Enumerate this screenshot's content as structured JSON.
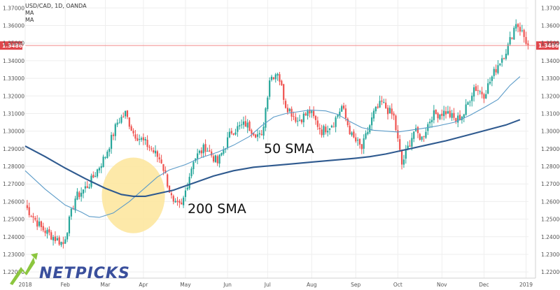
{
  "header": {
    "symbol": "USD/CAD, 1D, OANDA",
    "indicator_1": "MA",
    "indicator_2": "MA"
  },
  "logo": {
    "text": "NETPICKS"
  },
  "colors": {
    "up": "#26a69a",
    "down": "#ef5350",
    "sma50": "#5b9bc8",
    "sma200": "#2f5a8f",
    "highlight": "#fde59a",
    "price_line": "#f28b8b",
    "price_tag": "#e0474c",
    "logo": "#3a4f9c"
  },
  "chart_data": {
    "type": "candlestick",
    "title": "USD/CAD, 1D, OANDA",
    "current_price": "1.34863",
    "ylim": [
      1.2165,
      1.3745
    ],
    "y_ticks": [
      "1.37000",
      "1.36000",
      "1.35000",
      "1.34000",
      "1.33000",
      "1.32000",
      "1.31000",
      "1.30000",
      "1.29000",
      "1.28000",
      "1.27000",
      "1.26000",
      "1.25000",
      "1.24000",
      "1.23000",
      "1.22000"
    ],
    "x_ticks": [
      "2018",
      "Feb",
      "Mar",
      "Apr",
      "May",
      "Jun",
      "Jul",
      "Aug",
      "Sep",
      "Oct",
      "Nov",
      "Dec",
      "2019"
    ],
    "x_tick_index": [
      0,
      20,
      40,
      59,
      80,
      101,
      121,
      143,
      165,
      186,
      208,
      229,
      250
    ],
    "close_path": [
      [
        0,
        1.2575
      ],
      [
        8,
        1.245
      ],
      [
        15,
        1.239
      ],
      [
        19,
        1.236
      ],
      [
        25,
        1.262
      ],
      [
        32,
        1.27
      ],
      [
        40,
        1.286
      ],
      [
        46,
        1.305
      ],
      [
        50,
        1.31
      ],
      [
        54,
        1.299
      ],
      [
        62,
        1.291
      ],
      [
        68,
        1.283
      ],
      [
        74,
        1.258
      ],
      [
        78,
        1.257
      ],
      [
        84,
        1.284
      ],
      [
        90,
        1.291
      ],
      [
        96,
        1.282
      ],
      [
        103,
        1.3
      ],
      [
        110,
        1.304
      ],
      [
        118,
        1.296
      ],
      [
        122,
        1.33
      ],
      [
        126,
        1.334
      ],
      [
        130,
        1.315
      ],
      [
        136,
        1.306
      ],
      [
        142,
        1.311
      ],
      [
        148,
        1.3
      ],
      [
        154,
        1.305
      ],
      [
        158,
        1.314
      ],
      [
        163,
        1.297
      ],
      [
        168,
        1.29
      ],
      [
        174,
        1.31
      ],
      [
        178,
        1.316
      ],
      [
        184,
        1.308
      ],
      [
        188,
        1.281
      ],
      [
        194,
        1.3
      ],
      [
        198,
        1.296
      ],
      [
        203,
        1.309
      ],
      [
        210,
        1.311
      ],
      [
        215,
        1.306
      ],
      [
        219,
        1.31
      ],
      [
        224,
        1.325
      ],
      [
        229,
        1.321
      ],
      [
        236,
        1.338
      ],
      [
        241,
        1.348
      ],
      [
        245,
        1.362
      ],
      [
        248,
        1.356
      ],
      [
        251,
        1.3486
      ]
    ],
    "annotations": [
      "50 SMA",
      "200 SMA"
    ],
    "series": [
      {
        "name": "50 SMA",
        "points": [
          [
            0,
            1.2775
          ],
          [
            10,
            1.267
          ],
          [
            20,
            1.258
          ],
          [
            28,
            1.254
          ],
          [
            32,
            1.2515
          ],
          [
            37,
            1.251
          ],
          [
            44,
            1.2535
          ],
          [
            52,
            1.26
          ],
          [
            60,
            1.268
          ],
          [
            66,
            1.274
          ],
          [
            72,
            1.278
          ],
          [
            80,
            1.281
          ],
          [
            88,
            1.285
          ],
          [
            96,
            1.288
          ],
          [
            104,
            1.292
          ],
          [
            112,
            1.297
          ],
          [
            118,
            1.303
          ],
          [
            124,
            1.308
          ],
          [
            130,
            1.31
          ],
          [
            136,
            1.311
          ],
          [
            142,
            1.312
          ],
          [
            150,
            1.3115
          ],
          [
            156,
            1.3095
          ],
          [
            162,
            1.3055
          ],
          [
            168,
            1.302
          ],
          [
            174,
            1.3005
          ],
          [
            180,
            1.3
          ],
          [
            186,
            1.2995
          ],
          [
            192,
            1.3005
          ],
          [
            198,
            1.3015
          ],
          [
            206,
            1.303
          ],
          [
            214,
            1.305
          ],
          [
            222,
            1.309
          ],
          [
            230,
            1.314
          ],
          [
            236,
            1.318
          ],
          [
            242,
            1.326
          ],
          [
            247,
            1.331
          ]
        ]
      },
      {
        "name": "200 SMA",
        "points": [
          [
            0,
            1.2915
          ],
          [
            10,
            1.2855
          ],
          [
            20,
            1.279
          ],
          [
            30,
            1.273
          ],
          [
            40,
            1.2675
          ],
          [
            48,
            1.264
          ],
          [
            54,
            1.263
          ],
          [
            60,
            1.263
          ],
          [
            66,
            1.2645
          ],
          [
            74,
            1.2665
          ],
          [
            84,
            1.2705
          ],
          [
            94,
            1.2745
          ],
          [
            104,
            1.2775
          ],
          [
            114,
            1.2795
          ],
          [
            124,
            1.2805
          ],
          [
            134,
            1.2815
          ],
          [
            144,
            1.2825
          ],
          [
            154,
            1.2835
          ],
          [
            164,
            1.2845
          ],
          [
            172,
            1.2855
          ],
          [
            180,
            1.287
          ],
          [
            190,
            1.2895
          ],
          [
            200,
            1.292
          ],
          [
            210,
            1.2945
          ],
          [
            220,
            1.2975
          ],
          [
            230,
            1.3005
          ],
          [
            240,
            1.3035
          ],
          [
            247,
            1.3065
          ]
        ]
      }
    ],
    "highlight": {
      "center_index": 54,
      "center_value": 1.2635,
      "half_width_bars": 7.5,
      "half_height_value": 0.0215
    }
  }
}
